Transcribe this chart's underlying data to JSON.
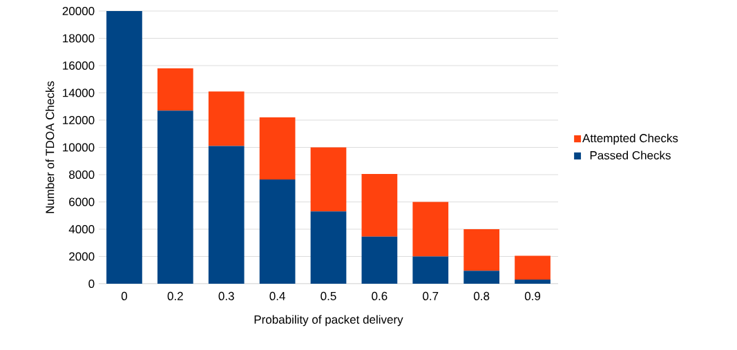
{
  "chart_data": {
    "type": "bar",
    "stacked": true,
    "xlabel": "Probability of packet delivery",
    "ylabel": "Number of TDOA Checks",
    "categories": [
      "0",
      "0.2",
      "0.3",
      "0.4",
      "0.5",
      "0.6",
      "0.7",
      "0.8",
      "0.9"
    ],
    "series": [
      {
        "name": "Passed Checks",
        "color": "#004586",
        "values": [
          20000,
          12700,
          10100,
          7650,
          5300,
          3450,
          2000,
          950,
          300
        ]
      },
      {
        "name": "Attempted Checks",
        "color": "#ff420e",
        "values": [
          0,
          3100,
          4000,
          4550,
          4700,
          4600,
          4000,
          3050,
          1750
        ]
      }
    ],
    "ylim": [
      0,
      20000
    ],
    "yticks": [
      0,
      2000,
      4000,
      6000,
      8000,
      10000,
      12000,
      14000,
      16000,
      18000,
      20000
    ],
    "grid": "y",
    "legend": "right"
  }
}
